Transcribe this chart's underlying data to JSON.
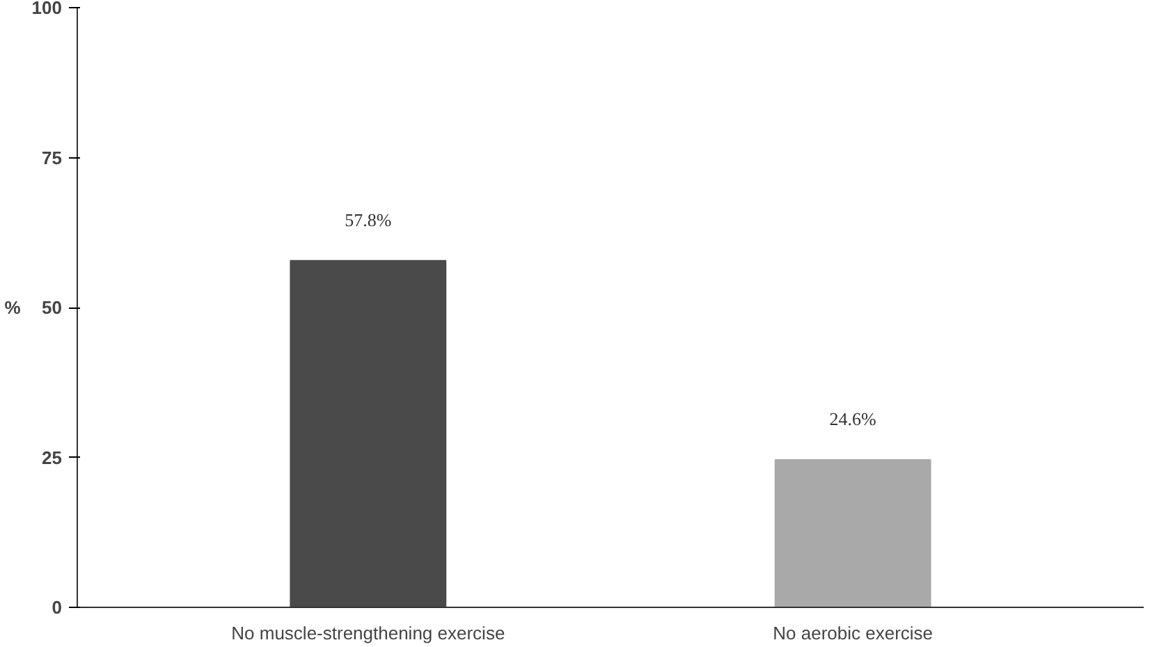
{
  "chart_data": {
    "type": "bar",
    "ylabel": "%",
    "categories": [
      "No muscle-strengthening exercise",
      "No aerobic exercise"
    ],
    "values": [
      57.8,
      24.6
    ],
    "colors": [
      "#4a4a4a",
      "#a9a9a9"
    ],
    "value_labels": [
      "57.8%",
      "24.6%"
    ],
    "ylim": [
      0,
      100
    ],
    "yticks": [
      0,
      25,
      50,
      75,
      100
    ],
    "grid": false
  }
}
